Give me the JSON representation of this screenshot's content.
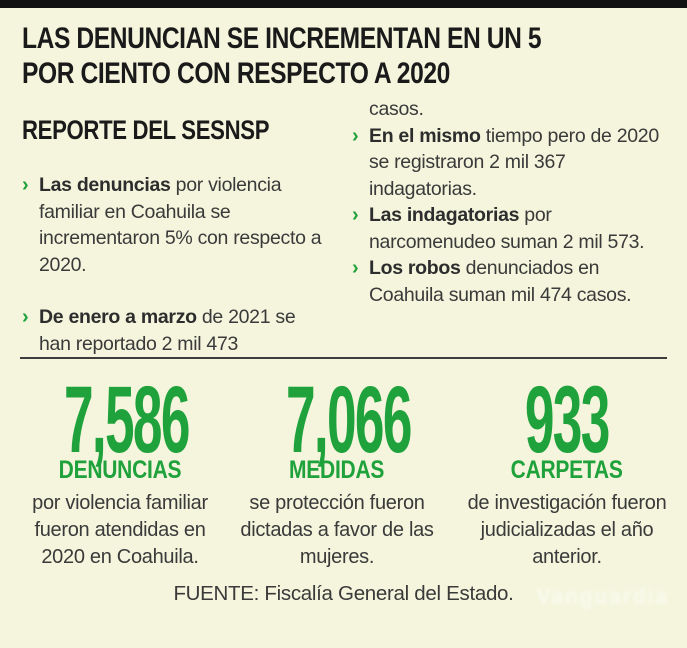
{
  "colors": {
    "background": "#f4f5dc",
    "accent_green": "#1fa23c",
    "ink": "#1a1a1a",
    "body_text": "#3a3a3a",
    "top_bar": "#121212",
    "divider": "#3d3d3d"
  },
  "glyphs": {
    "bullet": "›"
  },
  "header": {
    "title_line1": "LAS DENUNCIAN SE INCREMENTAN EN UN 5",
    "title_line2": "POR CIENTO CON RESPECTO A 2020"
  },
  "report": {
    "heading": "REPORTE DEL SESNSP",
    "left_bullets": [
      {
        "bold": "Las denuncias",
        "rest": " por violencia familiar en Coahuila se incrementaron 5% con respecto a 2020."
      },
      {
        "bold": "De enero a marzo",
        "rest": " de 2021 se han reportado 2 mil 473"
      }
    ],
    "right_continuation": "casos.",
    "right_bullets": [
      {
        "bold": "En el mismo",
        "rest": " tiempo pero de 2020 se registraron 2 mil 367 indagatorias."
      },
      {
        "bold": "Las indagatorias",
        "rest": " por narcomenudeo suman 2 mil 573."
      },
      {
        "bold": "Los robos",
        "rest": " denunciados en Coahuila suman mil 474 casos."
      }
    ]
  },
  "stats": {
    "items": [
      {
        "value": "7,586",
        "label": "DENUNCIAS",
        "caption": "por violencia familiar fueron atendidas en 2020 en Coahuila."
      },
      {
        "value": "7,066",
        "label": "MEDIDAS",
        "caption": "se protección fueron dictadas a favor de las mujeres."
      },
      {
        "value": "933",
        "label": "CARPETAS",
        "caption": "de investigación fueron judicializadas el año anterior."
      }
    ]
  },
  "footer": {
    "source": "FUENTE: Fiscalía General del Estado.",
    "watermark": "Vanguardia"
  }
}
